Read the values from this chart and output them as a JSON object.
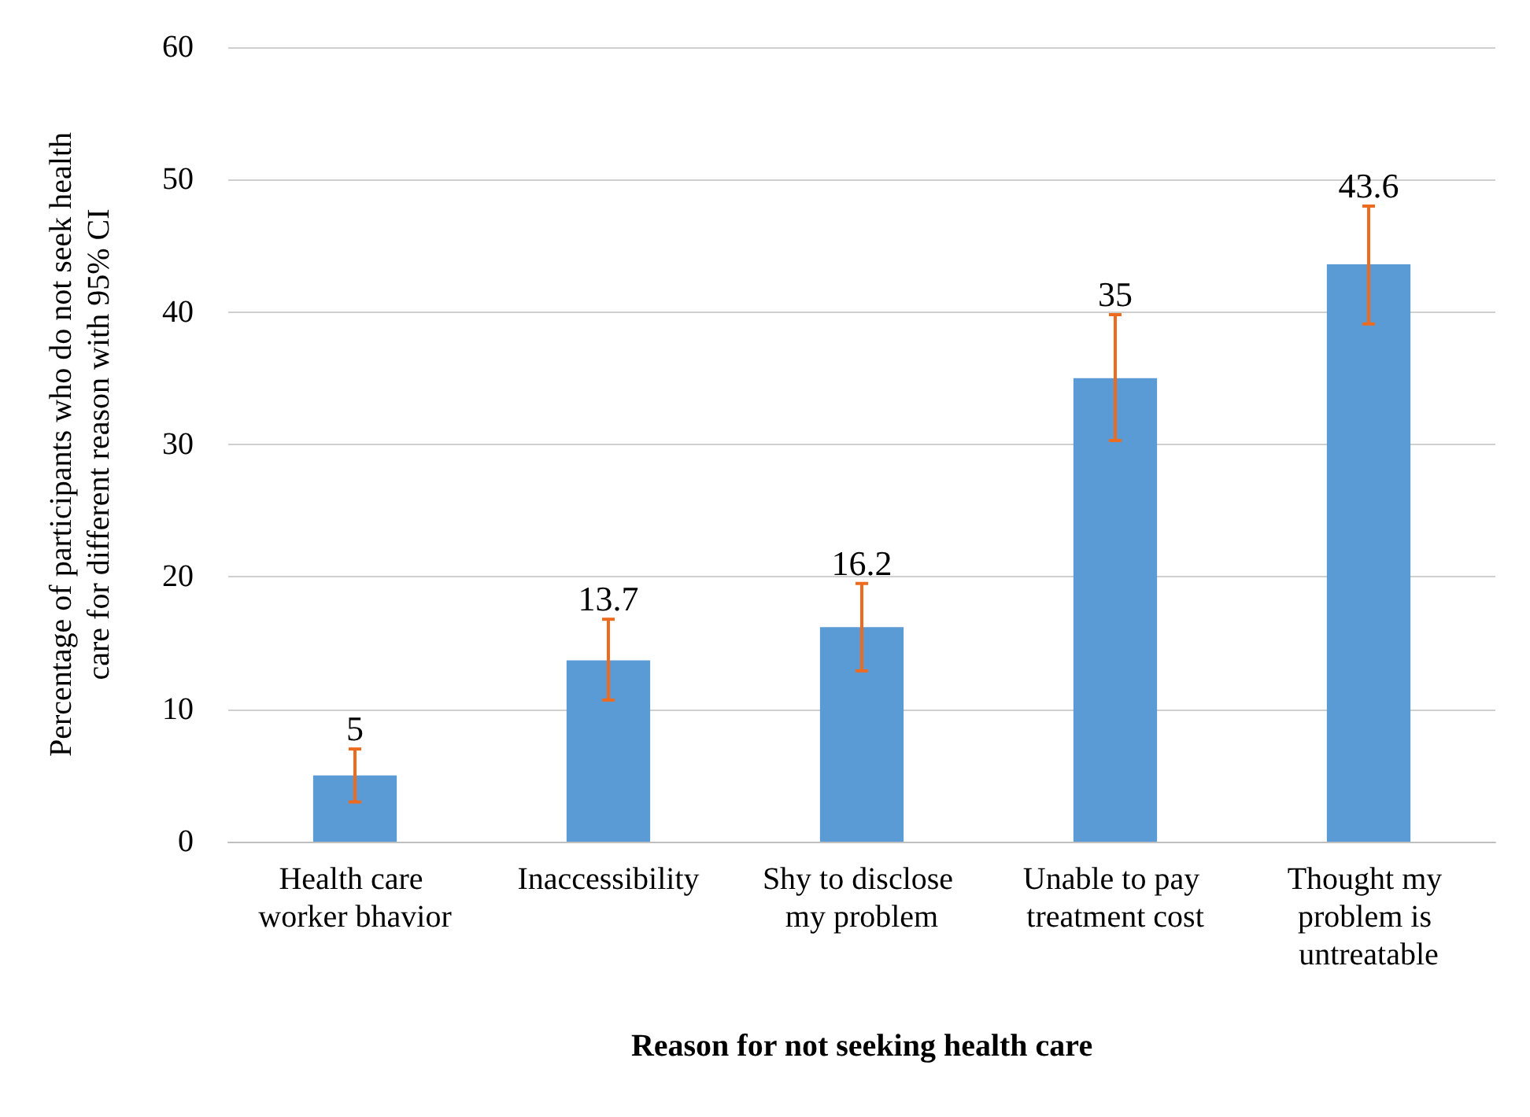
{
  "chart_data": {
    "type": "bar",
    "xlabel": "Reason for not seeking health care",
    "ylabel": "Percentage of participants who do not seek health care for different reason with 95% CI",
    "categories": [
      "Health care worker bhavior",
      "Inaccessibility",
      "Shy to disclose my problem",
      "Unable to pay treatment cost",
      "Thought my problem is untreatable"
    ],
    "values": [
      5,
      13.7,
      16.2,
      35,
      43.6
    ],
    "errors": [
      [
        3,
        7
      ],
      [
        10.7,
        16.8
      ],
      [
        12.9,
        19.5
      ],
      [
        30.3,
        39.8
      ],
      [
        39.1,
        48
      ]
    ],
    "color": "#5b9bd5",
    "ylim": [
      0,
      60
    ],
    "yticks": [
      0,
      10,
      20,
      30,
      40,
      50,
      60
    ],
    "grid": "y",
    "data_labels": true
  }
}
